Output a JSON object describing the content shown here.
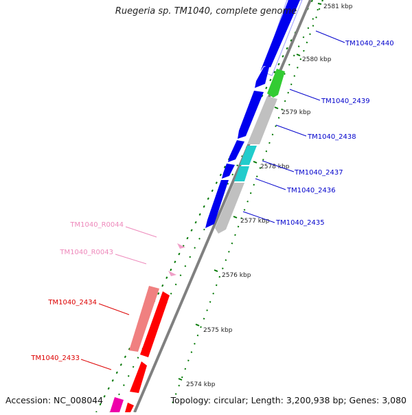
{
  "title": "Ruegeria sp. TM1040, complete genome",
  "footer": {
    "accession": "Accession: NC_008044",
    "stats": "Topology: circular; Length: 3,200,938 bp; Genes: 3,080"
  },
  "colors": {
    "background": "#ffffff",
    "backbone": "#808080",
    "cds_forward": "#0000ee",
    "cds_reverse": "#ff0000",
    "cds_reverse_light": "#f08080",
    "rna": "#f0a0c8",
    "pseudo": "#c0c0c0",
    "green_gene": "#33cc33",
    "cyan_gene": "#22cccc",
    "magenta_gene": "#ee00aa",
    "tick": "#007700",
    "label_forward": "#0000cc",
    "label_reverse": "#dd0000",
    "label_rna": "#ee88bb"
  },
  "scale": {
    "unit": "kbp",
    "ticks": [
      "2581 kbp",
      "2580 kbp",
      "2579 kbp",
      "2578 kbp",
      "2577 kbp",
      "2576 kbp",
      "2575 kbp",
      "2574 kbp"
    ]
  },
  "labels": {
    "TM1040_2440": "TM1040_2440",
    "TM1040_2439": "TM1040_2439",
    "TM1040_2438": "TM1040_2438",
    "TM1040_2437": "TM1040_2437",
    "TM1040_2436": "TM1040_2436",
    "TM1040_2435": "TM1040_2435",
    "TM1040_R0044": "TM1040_R0044",
    "TM1040_R0043": "TM1040_R0043",
    "TM1040_2434": "TM1040_2434",
    "TM1040_2433": "TM1040_2433"
  }
}
